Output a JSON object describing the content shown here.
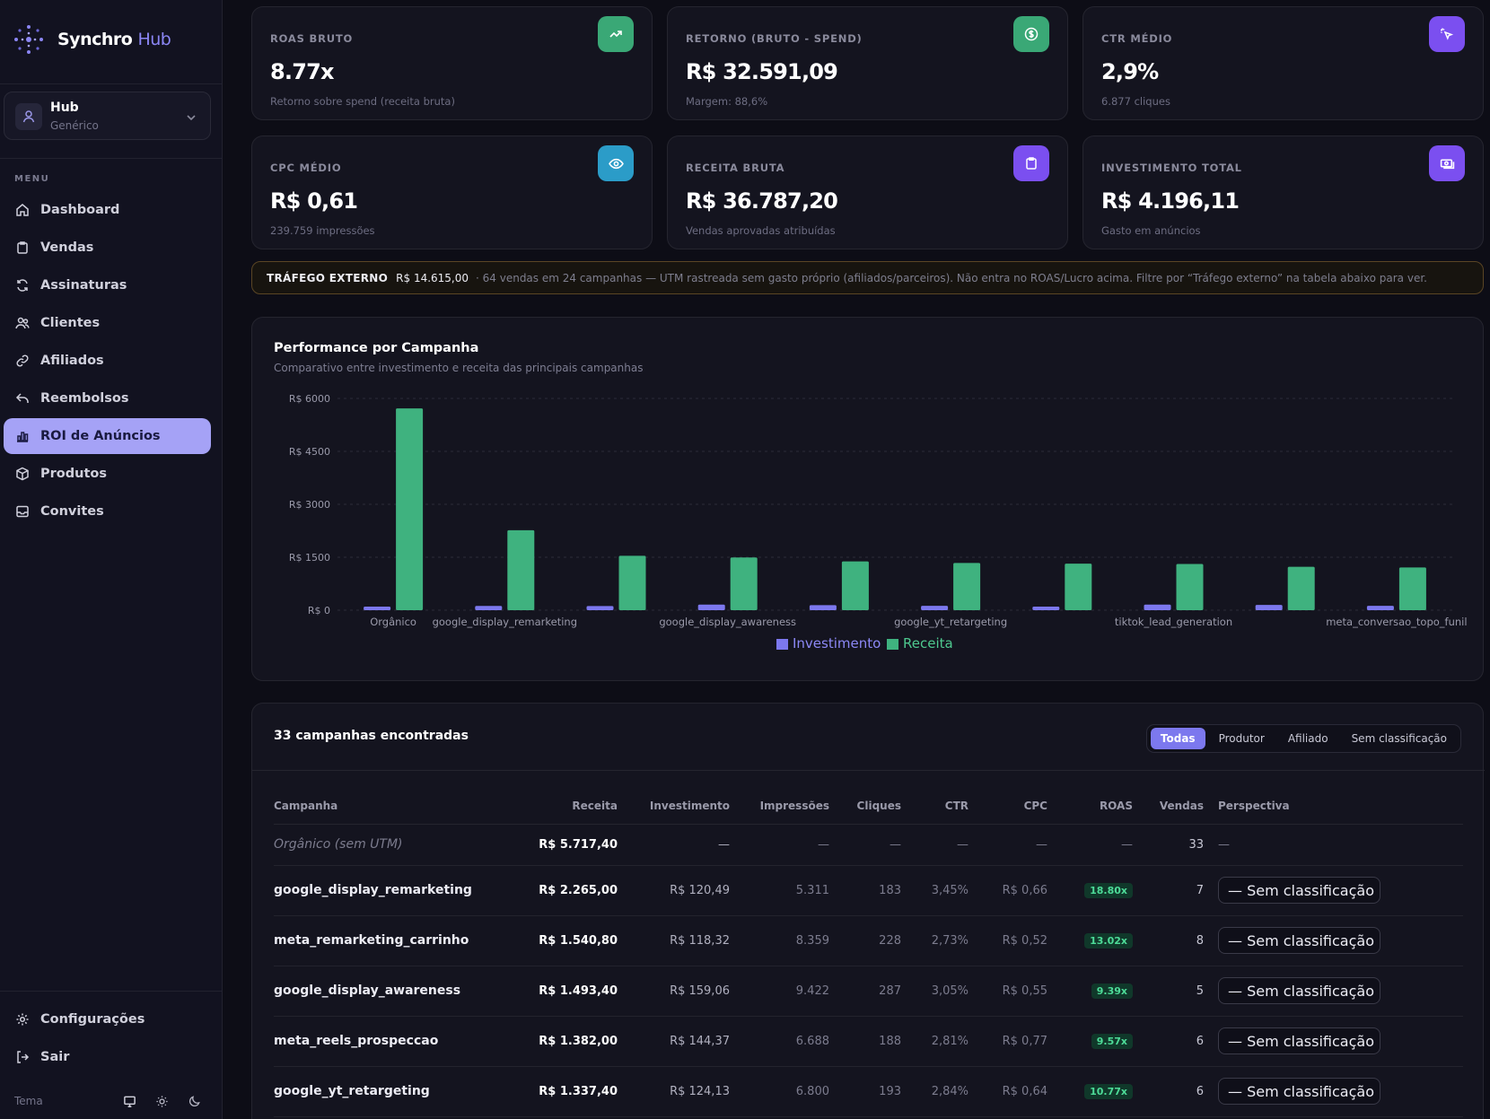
{
  "brand": {
    "name": "Synchro",
    "accent": "Hub"
  },
  "workspace": {
    "title": "Hub",
    "subtitle": "Genérico"
  },
  "menu_label": "MENU",
  "nav": [
    {
      "label": "Dashboard",
      "icon": "home-icon"
    },
    {
      "label": "Vendas",
      "icon": "clipboard-icon"
    },
    {
      "label": "Assinaturas",
      "icon": "refresh-icon"
    },
    {
      "label": "Clientes",
      "icon": "users-icon"
    },
    {
      "label": "Afiliados",
      "icon": "link-icon"
    },
    {
      "label": "Reembolsos",
      "icon": "undo-icon"
    },
    {
      "label": "ROI de Anúncios",
      "icon": "bar-chart-icon",
      "active": true
    },
    {
      "label": "Produtos",
      "icon": "box-icon"
    },
    {
      "label": "Convites",
      "icon": "inbox-icon"
    }
  ],
  "bottom_nav": [
    {
      "label": "Configurações",
      "icon": "gear-icon"
    },
    {
      "label": "Sair",
      "icon": "logout-icon"
    }
  ],
  "theme": {
    "label": "Tema",
    "options": [
      "monitor-icon",
      "sun-icon",
      "moon-icon"
    ]
  },
  "kpis": [
    {
      "label": "ROAS BRUTO",
      "value": "8.77x",
      "sub": "Retorno sobre spend (receita bruta)",
      "icon": "trend-up-icon",
      "color": "#3aa876"
    },
    {
      "label": "RETORNO (BRUTO - SPEND)",
      "value": "R$ 32.591,09",
      "sub": "Margem: 88,6%",
      "icon": "dollar-circle-icon",
      "color": "#3aa876"
    },
    {
      "label": "CTR MÉDIO",
      "value": "2,9%",
      "sub": "6.877 cliques",
      "icon": "cursor-click-icon",
      "color": "#7b4ff0"
    },
    {
      "label": "CPC MÉDIO",
      "value": "R$ 0,61",
      "sub": "239.759 impressões",
      "icon": "eye-icon",
      "color": "#2b9cc8"
    },
    {
      "label": "RECEITA BRUTA",
      "value": "R$ 36.787,20",
      "sub": "Vendas aprovadas atribuídas",
      "icon": "clipboard-icon",
      "color": "#7b4ff0"
    },
    {
      "label": "INVESTIMENTO TOTAL",
      "value": "R$ 4.196,11",
      "sub": "Gasto em anúncios",
      "icon": "money-icon",
      "color": "#7b4ff0"
    }
  ],
  "banner": {
    "title": "TRÁFEGO EXTERNO",
    "amount": "R$ 14.615,00",
    "desc": "· 64 vendas em 24 campanhas — UTM rastreada sem gasto próprio (afiliados/parceiros). Não entra no ROAS/Lucro acima. Filtre por “Tráfego externo” na tabela abaixo para ver."
  },
  "chart_card": {
    "title": "Performance por Campanha",
    "subtitle": "Comparativo entre investimento e receita das principais campanhas"
  },
  "chart_data": {
    "type": "bar",
    "categories": [
      "Orgânico",
      "google_display_remarketing",
      "meta_remarketing_carrinho",
      "google_display_awareness",
      "meta_reels_prospeccao",
      "google_yt_retargeting",
      "",
      "tiktok_lead_generation",
      "",
      "meta_conversao_topo_funil"
    ],
    "visible_tick_labels": [
      "Orgânico",
      "google_display_remarketing",
      "",
      "google_display_awareness",
      "",
      "google_yt_retargeting",
      "",
      "tiktok_lead_generation",
      "",
      "meta_conversao_topo_funil"
    ],
    "series": [
      {
        "name": "Investimento",
        "color": "#7c78ee",
        "values": [
          0,
          120.49,
          118.32,
          159.06,
          144.37,
          124.13,
          90,
          160,
          150,
          125
        ]
      },
      {
        "name": "Receita",
        "color": "#3fb27f",
        "values": [
          5717.4,
          2265.0,
          1540.8,
          1493.4,
          1382.0,
          1337.4,
          1320,
          1310,
          1230,
          1210
        ]
      }
    ],
    "y_ticks": [
      "R$ 0",
      "R$ 1500",
      "R$ 3000",
      "R$ 4500",
      "R$ 6000"
    ],
    "ylim": [
      0,
      6000
    ],
    "grid": true,
    "legend_position": "bottom-center"
  },
  "table": {
    "count": "33 campanhas encontradas",
    "filters": [
      "Todas",
      "Produtor",
      "Afiliado",
      "Sem classificação"
    ],
    "active_filter": "Todas",
    "columns": [
      "Campanha",
      "Receita",
      "Investimento",
      "Impressões",
      "Cliques",
      "CTR",
      "CPC",
      "ROAS",
      "Vendas",
      "Perspectiva"
    ],
    "rows": [
      {
        "campaign": "Orgânico (sem UTM)",
        "revenue": "R$ 5.717,40",
        "investment": "—",
        "impressions": "—",
        "clicks": "—",
        "ctr": "—",
        "cpc": "—",
        "roas": "—",
        "sales": "33",
        "perspective": "—"
      },
      {
        "campaign": "google_display_remarketing",
        "revenue": "R$ 2.265,00",
        "investment": "R$ 120,49",
        "impressions": "5.311",
        "clicks": "183",
        "ctr": "3,45%",
        "cpc": "R$ 0,66",
        "roas": "18.80x",
        "sales": "7",
        "perspective": "— Sem classificação"
      },
      {
        "campaign": "meta_remarketing_carrinho",
        "revenue": "R$ 1.540,80",
        "investment": "R$ 118,32",
        "impressions": "8.359",
        "clicks": "228",
        "ctr": "2,73%",
        "cpc": "R$ 0,52",
        "roas": "13.02x",
        "sales": "8",
        "perspective": "— Sem classificação"
      },
      {
        "campaign": "google_display_awareness",
        "revenue": "R$ 1.493,40",
        "investment": "R$ 159,06",
        "impressions": "9.422",
        "clicks": "287",
        "ctr": "3,05%",
        "cpc": "R$ 0,55",
        "roas": "9.39x",
        "sales": "5",
        "perspective": "— Sem classificação"
      },
      {
        "campaign": "meta_reels_prospeccao",
        "revenue": "R$ 1.382,00",
        "investment": "R$ 144,37",
        "impressions": "6.688",
        "clicks": "188",
        "ctr": "2,81%",
        "cpc": "R$ 0,77",
        "roas": "9.57x",
        "sales": "6",
        "perspective": "— Sem classificação"
      },
      {
        "campaign": "google_yt_retargeting",
        "revenue": "R$ 1.337,40",
        "investment": "R$ 124,13",
        "impressions": "6.800",
        "clicks": "193",
        "ctr": "2,84%",
        "cpc": "R$ 0,64",
        "roas": "10.77x",
        "sales": "6",
        "perspective": "— Sem classificação"
      }
    ]
  }
}
